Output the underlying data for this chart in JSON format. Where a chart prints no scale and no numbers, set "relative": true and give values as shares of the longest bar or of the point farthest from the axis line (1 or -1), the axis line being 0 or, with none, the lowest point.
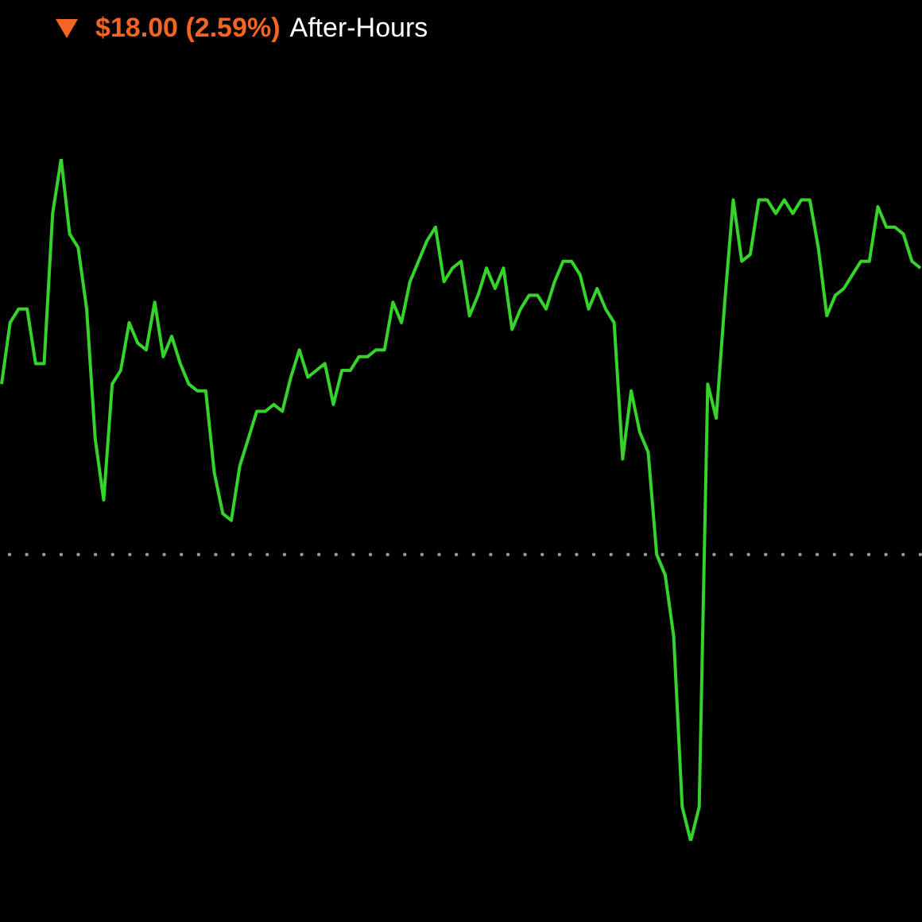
{
  "chart_data": {
    "type": "line",
    "title": "$18.00 (2.59%)",
    "subtitle": "After-Hours",
    "relative": true,
    "categories": [
      null,
      null,
      null,
      null,
      null,
      null,
      null,
      null,
      null,
      null,
      null,
      null,
      null,
      null,
      null,
      null,
      null,
      null,
      null,
      null,
      null,
      null,
      null,
      null,
      null,
      null,
      null,
      null,
      null,
      null,
      null,
      null,
      null,
      null,
      null,
      null,
      null,
      null,
      null,
      null,
      null,
      null,
      null,
      null,
      null,
      null,
      null,
      null,
      null,
      null,
      null,
      null,
      null,
      null,
      null,
      null,
      null,
      null,
      null,
      null,
      null,
      null,
      null,
      null,
      null,
      null,
      null,
      null,
      null,
      null,
      null,
      null,
      null,
      null,
      null,
      null,
      null,
      null,
      null,
      null,
      null,
      null,
      null,
      null,
      null,
      null,
      null,
      null,
      null,
      null,
      null,
      null,
      null,
      null,
      null,
      null,
      null,
      null,
      null,
      null,
      null,
      null,
      null,
      null,
      null,
      null,
      null,
      null,
      null
    ],
    "series": [
      {
        "color": "#35d32b",
        "values": [
          0.67,
          0.76,
          0.78,
          0.78,
          0.7,
          0.7,
          0.92,
          1.0,
          0.89,
          0.87,
          0.78,
          0.59,
          0.5,
          0.67,
          0.69,
          0.76,
          0.73,
          0.72,
          0.79,
          0.71,
          0.74,
          0.7,
          0.67,
          0.66,
          0.66,
          0.54,
          0.48,
          0.47,
          0.55,
          0.59,
          0.63,
          0.63,
          0.64,
          0.63,
          0.68,
          0.72,
          0.68,
          0.69,
          0.7,
          0.64,
          0.69,
          0.69,
          0.71,
          0.71,
          0.72,
          0.72,
          0.79,
          0.76,
          0.82,
          0.85,
          0.88,
          0.9,
          0.82,
          0.84,
          0.85,
          0.77,
          0.8,
          0.84,
          0.81,
          0.84,
          0.75,
          0.78,
          0.8,
          0.8,
          0.78,
          0.82,
          0.85,
          0.85,
          0.83,
          0.78,
          0.81,
          0.78,
          0.76,
          0.56,
          0.66,
          0.6,
          0.57,
          0.42,
          0.39,
          0.3,
          0.05,
          0,
          0.05,
          0.67,
          0.62,
          0.79,
          0.94,
          0.85,
          0.86,
          0.94,
          0.94,
          0.92,
          0.94,
          0.92,
          0.94,
          0.94,
          0.87,
          0.77,
          0.8,
          0.81,
          0.83,
          0.85,
          0.85,
          0.93,
          0.9,
          0.9,
          0.89,
          0.85,
          0.84
        ]
      }
    ],
    "ref_lines": [
      {
        "axis": "y",
        "value": 0.42,
        "color": "#9a9a9a",
        "line_style": "dotted"
      }
    ],
    "line_style": "solid",
    "legend": false,
    "grid": false
  }
}
